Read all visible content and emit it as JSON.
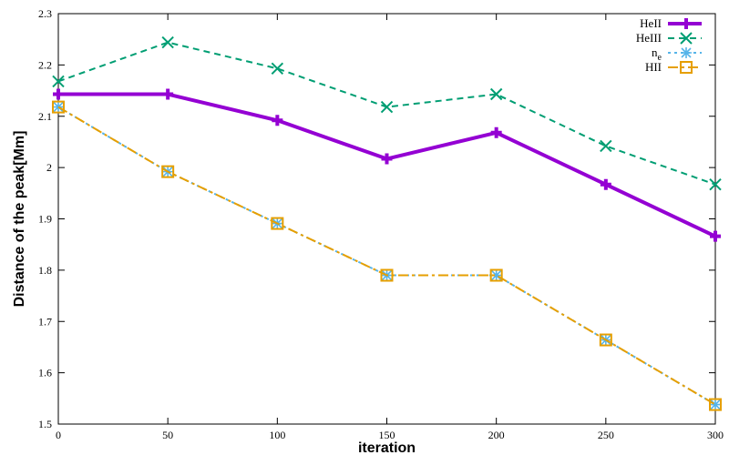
{
  "chart_data": {
    "type": "line",
    "xlabel": "iteration",
    "ylabel": "Distance of the peak[Mm]",
    "xlim": [
      0,
      300
    ],
    "ylim": [
      1.5,
      2.3
    ],
    "x_ticks": [
      "0",
      "50",
      "100",
      "150",
      "200",
      "250",
      "300"
    ],
    "y_ticks": [
      "1.5",
      "1.6",
      "1.7",
      "1.8",
      "1.9",
      "2",
      "2.1",
      "2.2",
      "2.3"
    ],
    "grid": false,
    "legend_position": "top-right",
    "x": [
      0,
      50,
      100,
      150,
      200,
      250,
      300
    ],
    "series": [
      {
        "name": "HeII",
        "values": [
          2.143,
          2.143,
          2.092,
          2.017,
          2.068,
          1.967,
          1.866
        ],
        "color": "#9400d3",
        "marker": "plus",
        "dash": "solid"
      },
      {
        "name": "HeIII",
        "values": [
          2.168,
          2.244,
          2.193,
          2.118,
          2.143,
          2.042,
          1.967
        ],
        "color": "#009e73",
        "marker": "x",
        "dash": "dashed"
      },
      {
        "name": "n",
        "name_sub": "e",
        "values": [
          2.118,
          1.992,
          1.891,
          1.79,
          1.79,
          1.664,
          1.538
        ],
        "color": "#56b4e9",
        "marker": "star",
        "dash": "dotted"
      },
      {
        "name": "HII",
        "values": [
          2.118,
          1.992,
          1.891,
          1.79,
          1.79,
          1.664,
          1.538
        ],
        "color": "#e69f00",
        "marker": "square",
        "dash": "dashdot"
      }
    ]
  }
}
